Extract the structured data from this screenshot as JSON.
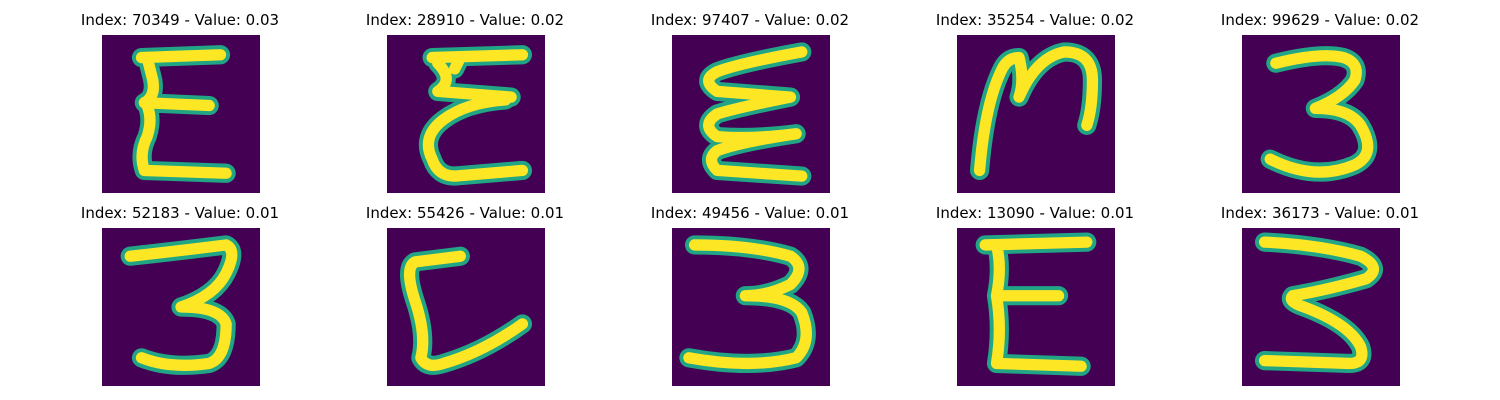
{
  "colors": {
    "background": "#440154",
    "stroke_outer": "#21a585",
    "stroke_inner": "#fde725",
    "stroke_mid": "#5ec962"
  },
  "panels": [
    {
      "title": "Index: 70349 - Value: 0.03",
      "glyph": "E"
    },
    {
      "title": "Index: 28910 - Value: 0.02",
      "glyph": "E"
    },
    {
      "title": "Index: 97407 - Value: 0.02",
      "glyph": "E"
    },
    {
      "title": "Index: 35254 - Value: 0.02",
      "glyph": "N"
    },
    {
      "title": "Index: 99629 - Value: 0.02",
      "glyph": "3"
    },
    {
      "title": "Index: 52183 - Value: 0.01",
      "glyph": "3"
    },
    {
      "title": "Index: 55426 - Value: 0.01",
      "glyph": "L"
    },
    {
      "title": "Index: 49456 - Value: 0.01",
      "glyph": "3"
    },
    {
      "title": "Index: 13090 - Value: 0.01",
      "glyph": "E"
    },
    {
      "title": "Index: 36173 - Value: 0.01",
      "glyph": "3"
    }
  ]
}
